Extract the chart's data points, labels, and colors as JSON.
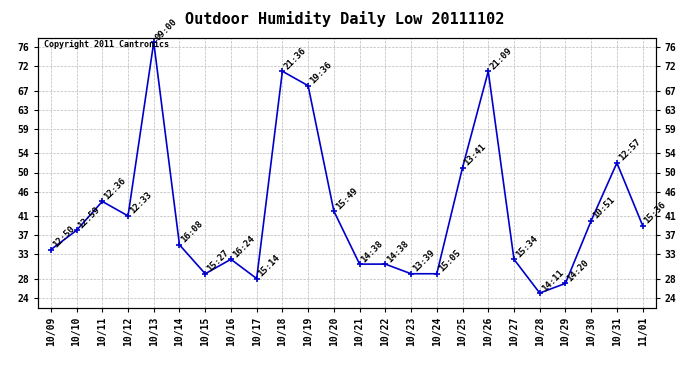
{
  "title": "Outdoor Humidity Daily Low 20111102",
  "copyright": "Copyright 2011 Cantronics",
  "x_labels": [
    "10/09",
    "10/10",
    "10/11",
    "10/12",
    "10/13",
    "10/14",
    "10/15",
    "10/16",
    "10/17",
    "10/18",
    "10/19",
    "10/20",
    "10/21",
    "10/22",
    "10/23",
    "10/24",
    "10/25",
    "10/26",
    "10/27",
    "10/28",
    "10/29",
    "10/30",
    "10/31",
    "11/01"
  ],
  "y_values": [
    34,
    38,
    44,
    41,
    77,
    35,
    29,
    32,
    28,
    71,
    68,
    42,
    31,
    31,
    29,
    29,
    51,
    71,
    32,
    25,
    27,
    40,
    52,
    39
  ],
  "point_labels": [
    "12:50",
    "12:59",
    "12:36",
    "12:33",
    "09:00",
    "16:08",
    "15:27",
    "16:24",
    "15:14",
    "21:36",
    "19:36",
    "15:49",
    "14:38",
    "14:38",
    "13:39",
    "15:05",
    "13:41",
    "21:09",
    "15:34",
    "14:11",
    "14:20",
    "10:51",
    "12:57",
    "15:36"
  ],
  "ylim_min": 22,
  "ylim_max": 78,
  "yticks": [
    24,
    28,
    33,
    37,
    41,
    46,
    50,
    54,
    59,
    63,
    67,
    72,
    76
  ],
  "line_color": "#0000cc",
  "bg_color": "#ffffff",
  "grid_color": "#bbbbbb",
  "title_fontsize": 11,
  "label_fontsize": 6.5,
  "tick_fontsize": 7,
  "copyright_fontsize": 6
}
